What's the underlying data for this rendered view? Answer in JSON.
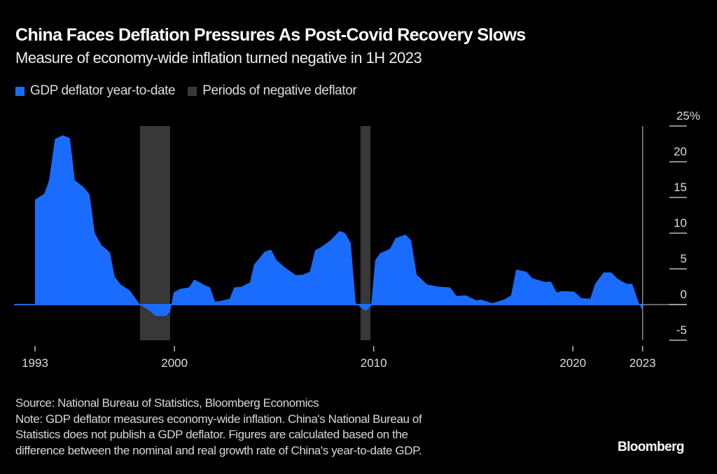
{
  "colors": {
    "background": "#000000",
    "series": "#1a6cff",
    "shading": "#383838",
    "axis": "#888888"
  },
  "chart_data": {
    "type": "area",
    "title": "China Faces Deflation Pressures As Post-Covid Recovery Slows",
    "subtitle": "Measure of economy-wide inflation turned negative in 1H 2023",
    "legend": [
      {
        "name": "GDP deflator year-to-date",
        "color": "#1a6cff"
      },
      {
        "name": "Periods of negative deflator",
        "color": "#383838"
      }
    ],
    "legend_placement": "top-left",
    "y_axis": {
      "position": "right",
      "unit": "%",
      "range": [
        -5,
        25
      ],
      "ticks": [
        25,
        20,
        15,
        10,
        5,
        0,
        -5
      ],
      "tick_labels": [
        "25%",
        "20",
        "15",
        "10",
        "5",
        "0",
        "-5"
      ]
    },
    "x_axis": {
      "range": [
        1993,
        2023.5
      ],
      "ticks": [
        1993,
        2000,
        2010,
        2020,
        2023
      ],
      "tick_labels": [
        "1993",
        "2000",
        "2010",
        "2020",
        "2023"
      ]
    },
    "grid": false,
    "series": [
      {
        "name": "GDP deflator year-to-date",
        "points": [
          [
            1993.0,
            14.7
          ],
          [
            1993.46,
            15.5
          ],
          [
            1993.7,
            17.3
          ],
          [
            1994.0,
            23.2
          ],
          [
            1994.4,
            23.7
          ],
          [
            1994.75,
            23.3
          ],
          [
            1995.0,
            17.4
          ],
          [
            1995.46,
            16.4
          ],
          [
            1995.74,
            15.4
          ],
          [
            1996.0,
            10
          ],
          [
            1996.34,
            8.3
          ],
          [
            1996.76,
            7.3
          ],
          [
            1997.0,
            3.9
          ],
          [
            1997.3,
            2.8
          ],
          [
            1997.75,
            2.0
          ],
          [
            1998.27,
            0
          ],
          [
            1998.73,
            -0.8
          ],
          [
            1999.05,
            -1.6
          ],
          [
            1999.57,
            -1.6
          ],
          [
            1999.78,
            -1.0
          ],
          [
            1999.96,
            1.7
          ],
          [
            2000.28,
            2.2
          ],
          [
            2000.73,
            2.4
          ],
          [
            2001.0,
            3.5
          ],
          [
            2001.54,
            2.7
          ],
          [
            2001.79,
            2.4
          ],
          [
            2002.03,
            0.4
          ],
          [
            2002.31,
            0.5
          ],
          [
            2002.77,
            0.8
          ],
          [
            2003.0,
            2.4
          ],
          [
            2003.37,
            2.5
          ],
          [
            2003.79,
            3.1
          ],
          [
            2004.0,
            5.6
          ],
          [
            2004.53,
            7.4
          ],
          [
            2004.85,
            7.7
          ],
          [
            2005.13,
            6.2
          ],
          [
            2005.55,
            5.2
          ],
          [
            2006.1,
            4.1
          ],
          [
            2006.46,
            4.2
          ],
          [
            2006.8,
            4.6
          ],
          [
            2007.06,
            7.6
          ],
          [
            2007.34,
            8.0
          ],
          [
            2007.83,
            9.0
          ],
          [
            2008.29,
            10.3
          ],
          [
            2008.57,
            10.0
          ],
          [
            2008.85,
            8.6
          ],
          [
            2009.1,
            0.2
          ],
          [
            2009.59,
            -0.9
          ],
          [
            2009.87,
            -0.2
          ],
          [
            2010.08,
            6.2
          ],
          [
            2010.33,
            7.2
          ],
          [
            2010.82,
            7.8
          ],
          [
            2011.1,
            9.3
          ],
          [
            2011.6,
            9.8
          ],
          [
            2011.88,
            9.0
          ],
          [
            2012.16,
            4.2
          ],
          [
            2012.68,
            2.8
          ],
          [
            2013.28,
            2.5
          ],
          [
            2013.84,
            2.4
          ],
          [
            2014.16,
            1.2
          ],
          [
            2014.62,
            1.3
          ],
          [
            2015.14,
            0.6
          ],
          [
            2015.39,
            0.7
          ],
          [
            2015.95,
            0.2
          ],
          [
            2016.55,
            0.7
          ],
          [
            2016.9,
            1.3
          ],
          [
            2017.15,
            4.9
          ],
          [
            2017.67,
            4.6
          ],
          [
            2017.96,
            3.7
          ],
          [
            2018.55,
            3.2
          ],
          [
            2018.9,
            3.2
          ],
          [
            2019.19,
            1.7
          ],
          [
            2019.43,
            1.9
          ],
          [
            2020.07,
            1.8
          ],
          [
            2020.42,
            0.9
          ],
          [
            2020.87,
            0.8
          ],
          [
            2021.12,
            2.9
          ],
          [
            2021.54,
            4.5
          ],
          [
            2021.93,
            4.5
          ],
          [
            2022.24,
            3.6
          ],
          [
            2022.7,
            2.9
          ],
          [
            2022.98,
            2.9
          ],
          [
            2023.3,
            0.3
          ],
          [
            2023.47,
            -0.7
          ]
        ]
      }
    ],
    "shaded_periods": [
      [
        1998.27,
        1999.78
      ],
      [
        2009.34,
        2009.84
      ]
    ]
  },
  "footer": {
    "source": "Source: National Bureau of Statistics, Bloomberg Economics",
    "note_lines": [
      "Note: GDP deflator measures economy-wide inflation. China's National Bureau of",
      "Statistics does not publish a GDP deflator. Figures are calculated based on the",
      "difference between the nominal and real growth rate of China's year-to-date GDP."
    ],
    "logo": "Bloomberg"
  }
}
